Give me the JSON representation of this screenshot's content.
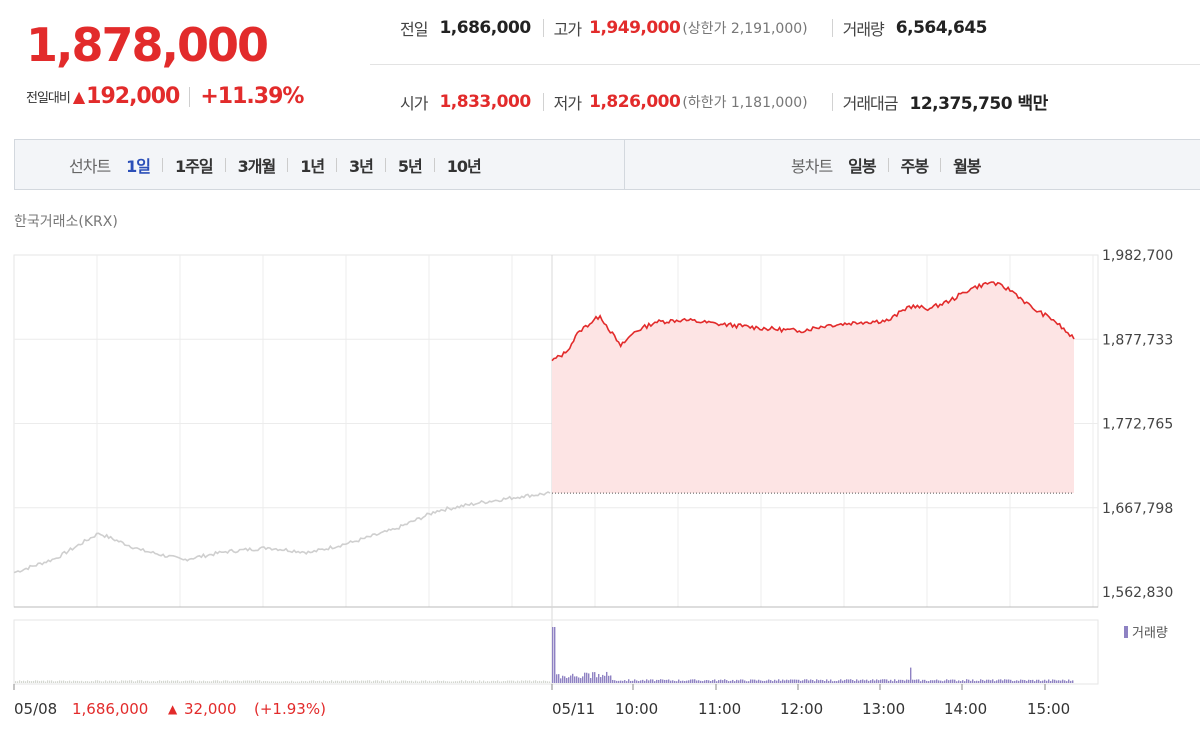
{
  "quote": {
    "price": "1,878,000",
    "change_label": "전일대비",
    "change_arrow": "▲",
    "change_value": "192,000",
    "change_pct": "+11.39%"
  },
  "stats": {
    "prev_close_label": "전일",
    "prev_close": "1,686,000",
    "high_label": "고가",
    "high": "1,949,000",
    "upper_limit": "(상한가 2,191,000)",
    "volume_label": "거래량",
    "volume": "6,564,645",
    "open_label": "시가",
    "open": "1,833,000",
    "low_label": "저가",
    "low": "1,826,000",
    "lower_limit": "(하한가 1,181,000)",
    "amount_label": "거래대금",
    "amount": "12,375,750 백만"
  },
  "tabs": {
    "line_title": "선차트",
    "line": [
      "1일",
      "1주일",
      "3개월",
      "1년",
      "3년",
      "5년",
      "10년"
    ],
    "line_active": "1일",
    "candle_title": "봉차트",
    "candle": [
      "일봉",
      "주봉",
      "월봉"
    ]
  },
  "exchange_label": "한국거래소(KRX)",
  "volume_legend": "거래량",
  "prev_day_footer": {
    "date": "05/08",
    "close": "1,686,000",
    "arrow": "▲",
    "change": "32,000",
    "pct": "(+1.93%)"
  },
  "colors": {
    "up": "#e22b2b",
    "active_tab": "#2b4fb8",
    "prev_line": "#cfcfcf",
    "volume": "#8e82c3"
  },
  "chart_data": {
    "type": "line",
    "y_ticks": [
      "1,982,700",
      "1,877,733",
      "1,772,765",
      "1,667,798",
      "1,562,830"
    ],
    "ylim": [
      1562830,
      1982700
    ],
    "x_ticks": [
      "05/11",
      "10:00",
      "11:00",
      "12:00",
      "13:00",
      "14:00",
      "15:00"
    ],
    "reference_prev_close": 1686000,
    "series": [
      {
        "name": "05/08",
        "x": [
          "09:00",
          "09:30",
          "10:00",
          "10:30",
          "11:00",
          "11:30",
          "12:00",
          "12:30",
          "13:00",
          "13:30",
          "14:00",
          "14:30",
          "15:00",
          "15:20"
        ],
        "values": [
          1587000,
          1605000,
          1636000,
          1615000,
          1603000,
          1613000,
          1618000,
          1612000,
          1625000,
          1641000,
          1664000,
          1674000,
          1682000,
          1686000
        ]
      },
      {
        "name": "05/11",
        "x": [
          "09:00",
          "09:10",
          "09:20",
          "09:35",
          "09:50",
          "10:00",
          "10:15",
          "10:35",
          "11:00",
          "11:30",
          "12:00",
          "12:20",
          "12:45",
          "13:05",
          "13:20",
          "13:35",
          "13:50",
          "14:05",
          "14:20",
          "14:35",
          "14:50",
          "15:05",
          "15:20"
        ],
        "values": [
          1851000,
          1861000,
          1888000,
          1907000,
          1869000,
          1887000,
          1899000,
          1902000,
          1897000,
          1892000,
          1888000,
          1895000,
          1899000,
          1901000,
          1919000,
          1916000,
          1926000,
          1941000,
          1949000,
          1938000,
          1916000,
          1902000,
          1878000
        ]
      }
    ],
    "volume": {
      "x": [
        "05/08 09:00",
        "05/08 15:20",
        "05/11 09:00",
        "05/11 09:30",
        "05/11 10:00",
        "05/11 12:00",
        "05/11 13:30",
        "05/11 14:00",
        "05/11 15:20"
      ],
      "values": [
        12000,
        9000,
        160000,
        30000,
        18000,
        14000,
        44000,
        16000,
        20000
      ]
    }
  }
}
